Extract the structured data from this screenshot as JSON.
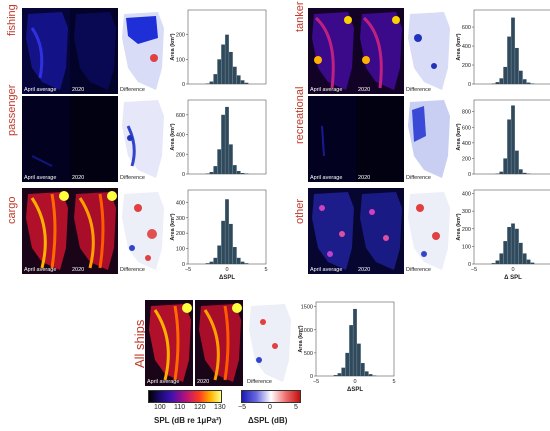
{
  "panels": [
    {
      "key": "fishing",
      "label": "fishing",
      "avg_caption": "April average",
      "year_caption": "2020",
      "diff_caption": "Difference",
      "ylabel": "Area (km²)",
      "yticks": [
        "0",
        "100",
        "200"
      ],
      "xlabel": "",
      "xticks": []
    },
    {
      "key": "passenger",
      "label": "passenger",
      "avg_caption": "April average",
      "year_caption": "2020",
      "diff_caption": "Difference",
      "ylabel": "Area (km²)",
      "yticks": [
        "0",
        "200",
        "400",
        "600"
      ],
      "xlabel": "",
      "xticks": []
    },
    {
      "key": "cargo",
      "label": "cargo",
      "avg_caption": "April average",
      "year_caption": "2020",
      "diff_caption": "Difference",
      "ylabel": "Area (km²)",
      "yticks": [
        "0",
        "100",
        "200",
        "300",
        "400"
      ],
      "xlabel": "ΔSPL",
      "xticks": [
        "−5",
        "0",
        "5"
      ]
    },
    {
      "key": "tanker",
      "label": "tanker",
      "avg_caption": "April average",
      "year_caption": "2020",
      "diff_caption": "Difference",
      "ylabel": "Area (km²)",
      "yticks": [
        "0",
        "200",
        "400",
        "600"
      ],
      "xlabel": "",
      "xticks": []
    },
    {
      "key": "recreational",
      "label": "recreational",
      "avg_caption": "April average",
      "year_caption": "2020",
      "diff_caption": "Difference",
      "ylabel": "Area (km²)",
      "yticks": [
        "0",
        "200",
        "400",
        "600",
        "800"
      ],
      "xlabel": "",
      "xticks": []
    },
    {
      "key": "other",
      "label": "other",
      "avg_caption": "April average",
      "year_caption": "2020",
      "diff_caption": "Difference",
      "ylabel": "Area (km²)",
      "yticks": [
        "0",
        "100",
        "200",
        "300",
        "400"
      ],
      "xlabel": "Δ SPL",
      "xticks": [
        "−5",
        "0",
        "5"
      ]
    },
    {
      "key": "all",
      "label": "All ships",
      "avg_caption": "April average",
      "year_caption": "2020",
      "diff_caption": "Difference",
      "ylabel": "Area (km²)",
      "yticks": [
        "0",
        "500",
        "1000",
        "1500"
      ],
      "xlabel": "ΔSPL",
      "xticks": [
        "−5",
        "0",
        "5"
      ]
    }
  ],
  "colorbars": {
    "spl": {
      "title": "SPL (dB re 1μPa²)",
      "ticks": [
        "100",
        "110",
        "120",
        "130"
      ],
      "range": [
        100,
        130
      ]
    },
    "dspl": {
      "title": "ΔSPL (dB)",
      "ticks": [
        "−5",
        "0",
        "5"
      ],
      "range": [
        -5,
        5
      ]
    }
  },
  "colors": {
    "hist_bar": "#2f4a5c",
    "label": "#c0392b"
  },
  "chart_data": [
    {
      "type": "bar",
      "series_key": "fishing",
      "x": [
        -3.0,
        -2.5,
        -2.0,
        -1.5,
        -1.0,
        -0.5,
        0.0,
        0.5,
        1.0,
        1.5,
        2.0,
        2.5,
        3.0
      ],
      "values": [
        0,
        2,
        10,
        40,
        100,
        160,
        200,
        130,
        70,
        35,
        15,
        5,
        0
      ],
      "ylim": [
        0,
        300
      ],
      "xlim": [
        -5,
        5
      ]
    },
    {
      "type": "bar",
      "series_key": "passenger",
      "x": [
        -3.0,
        -2.5,
        -2.0,
        -1.5,
        -1.0,
        -0.5,
        0.0,
        0.5,
        1.0,
        1.5,
        2.0,
        2.5,
        3.0
      ],
      "values": [
        0,
        5,
        20,
        80,
        250,
        600,
        680,
        300,
        90,
        30,
        10,
        5,
        0
      ],
      "ylim": [
        0,
        750
      ],
      "xlim": [
        -5,
        5
      ]
    },
    {
      "type": "bar",
      "series_key": "cargo",
      "x": [
        -3.0,
        -2.5,
        -2.0,
        -1.5,
        -1.0,
        -0.5,
        0.0,
        0.5,
        1.0,
        1.5,
        2.0,
        2.5,
        3.0
      ],
      "values": [
        0,
        5,
        15,
        40,
        120,
        280,
        420,
        260,
        110,
        40,
        15,
        5,
        0
      ],
      "ylim": [
        0,
        480
      ],
      "xlim": [
        -5,
        5
      ]
    },
    {
      "type": "bar",
      "series_key": "tanker",
      "x": [
        -3.0,
        -2.5,
        -2.0,
        -1.5,
        -1.0,
        -0.5,
        0.0,
        0.5,
        1.0,
        1.5,
        2.0,
        2.5,
        3.0
      ],
      "values": [
        0,
        5,
        20,
        60,
        180,
        500,
        700,
        380,
        140,
        50,
        15,
        5,
        0
      ],
      "ylim": [
        0,
        780
      ],
      "xlim": [
        -5,
        5
      ]
    },
    {
      "type": "bar",
      "series_key": "recreational",
      "x": [
        -3.0,
        -2.5,
        -2.0,
        -1.5,
        -1.0,
        -0.5,
        0.0,
        0.5,
        1.0,
        1.5,
        2.0,
        2.5,
        3.0
      ],
      "values": [
        0,
        0,
        5,
        30,
        200,
        700,
        880,
        300,
        60,
        15,
        5,
        0,
        0
      ],
      "ylim": [
        0,
        950
      ],
      "xlim": [
        -5,
        5
      ]
    },
    {
      "type": "bar",
      "series_key": "other",
      "x": [
        -3.0,
        -2.5,
        -2.0,
        -1.5,
        -1.0,
        -0.5,
        0.0,
        0.5,
        1.0,
        1.5,
        2.0,
        2.5,
        3.0
      ],
      "values": [
        0,
        5,
        20,
        60,
        130,
        210,
        230,
        200,
        120,
        60,
        25,
        8,
        0
      ],
      "ylim": [
        0,
        420
      ],
      "xlim": [
        -5,
        5
      ]
    },
    {
      "type": "bar",
      "series_key": "all",
      "x": [
        -3.0,
        -2.5,
        -2.0,
        -1.5,
        -1.0,
        -0.5,
        0.0,
        0.5,
        1.0,
        1.5,
        2.0,
        2.5,
        3.0
      ],
      "values": [
        0,
        20,
        60,
        180,
        500,
        1100,
        1450,
        700,
        280,
        100,
        40,
        10,
        0
      ],
      "ylim": [
        0,
        1600
      ],
      "xlim": [
        -5,
        5
      ]
    }
  ]
}
